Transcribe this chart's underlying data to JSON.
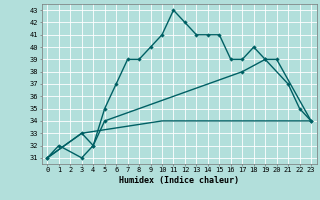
{
  "title": "",
  "xlabel": "Humidex (Indice chaleur)",
  "bg_color": "#b2dfdb",
  "grid_color": "#ffffff",
  "line_color": "#006064",
  "line1_pts": [
    [
      0,
      31
    ],
    [
      1,
      32
    ],
    [
      3,
      31
    ],
    [
      4,
      32
    ],
    [
      5,
      35
    ],
    [
      6,
      37
    ],
    [
      7,
      39
    ],
    [
      8,
      39
    ],
    [
      9,
      40
    ],
    [
      10,
      41
    ],
    [
      11,
      43
    ],
    [
      12,
      42
    ],
    [
      13,
      41
    ],
    [
      14,
      41
    ],
    [
      15,
      41
    ],
    [
      16,
      39
    ],
    [
      17,
      39
    ],
    [
      18,
      40
    ],
    [
      19,
      39
    ],
    [
      21,
      37
    ],
    [
      22,
      35
    ],
    [
      23,
      34
    ]
  ],
  "line2_pts": [
    [
      0,
      31
    ],
    [
      3,
      33
    ],
    [
      4,
      32
    ],
    [
      5,
      34
    ],
    [
      17,
      38
    ],
    [
      19,
      39
    ],
    [
      20,
      39
    ],
    [
      23,
      34
    ]
  ],
  "line3_pts": [
    [
      0,
      31
    ],
    [
      3,
      33
    ],
    [
      10,
      34
    ],
    [
      23,
      34
    ]
  ],
  "ylim": [
    30.5,
    43.5
  ],
  "xlim": [
    -0.5,
    23.5
  ],
  "yticks": [
    31,
    32,
    33,
    34,
    35,
    36,
    37,
    38,
    39,
    40,
    41,
    42,
    43
  ],
  "xticks": [
    0,
    1,
    2,
    3,
    4,
    5,
    6,
    7,
    8,
    9,
    10,
    11,
    12,
    13,
    14,
    15,
    16,
    17,
    18,
    19,
    20,
    21,
    22,
    23
  ]
}
